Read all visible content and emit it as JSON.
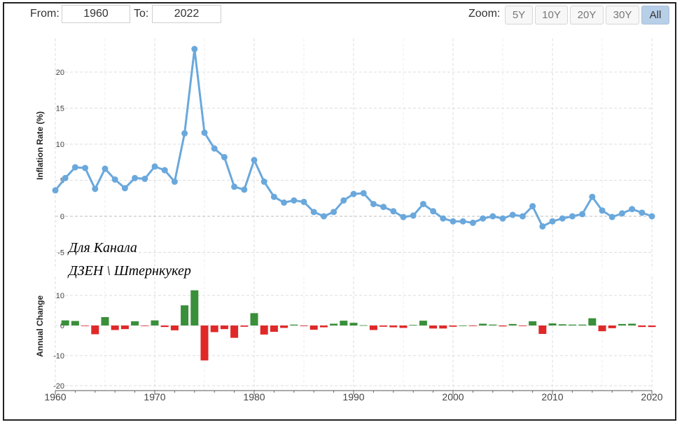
{
  "range": {
    "from_label": "From:",
    "from_value": "1960",
    "to_label": "To:",
    "to_value": "2022"
  },
  "zoom": {
    "label": "Zoom:",
    "buttons": [
      "5Y",
      "10Y",
      "20Y",
      "30Y",
      "All"
    ],
    "active": "All"
  },
  "watermark": {
    "line1": "Для Канала",
    "line2": "ДЗЕН \\ Штернкукер"
  },
  "colors": {
    "line": "#6aa8dc",
    "positive": "#3a8f3a",
    "negative": "#e02828",
    "grid": "#dddddd"
  },
  "chart_data": [
    {
      "type": "line",
      "ylabel": "Inflation Rate (%)",
      "ylim": [
        -5,
        25
      ],
      "yticks": [
        -5,
        0,
        5,
        10,
        15,
        20
      ],
      "xlim": [
        1960,
        2020
      ],
      "grid": true,
      "x": [
        1960,
        1961,
        1962,
        1963,
        1964,
        1965,
        1966,
        1967,
        1968,
        1969,
        1970,
        1971,
        1972,
        1973,
        1974,
        1975,
        1976,
        1977,
        1978,
        1979,
        1980,
        1981,
        1982,
        1983,
        1984,
        1985,
        1986,
        1987,
        1988,
        1989,
        1990,
        1991,
        1992,
        1993,
        1994,
        1995,
        1996,
        1997,
        1998,
        1999,
        2000,
        2001,
        2002,
        2003,
        2004,
        2005,
        2006,
        2007,
        2008,
        2009,
        2010,
        2011,
        2012,
        2013,
        2014,
        2015,
        2016,
        2017,
        2018,
        2019,
        2020
      ],
      "values": [
        3.6,
        5.3,
        6.8,
        6.7,
        3.8,
        6.6,
        5.1,
        3.9,
        5.3,
        5.2,
        6.9,
        6.4,
        4.8,
        11.5,
        23.2,
        11.6,
        9.4,
        8.2,
        4.1,
        3.7,
        7.8,
        4.8,
        2.7,
        1.9,
        2.2,
        2.0,
        0.6,
        0.0,
        0.6,
        2.2,
        3.1,
        3.2,
        1.7,
        1.3,
        0.7,
        -0.1,
        0.1,
        1.7,
        0.7,
        -0.3,
        -0.7,
        -0.7,
        -0.9,
        -0.3,
        0.0,
        -0.3,
        0.2,
        0.0,
        1.4,
        -1.4,
        -0.7,
        -0.3,
        0.0,
        0.3,
        2.7,
        0.8,
        -0.1,
        0.4,
        1.0,
        0.5,
        0.0
      ]
    },
    {
      "type": "bar",
      "ylabel": "Annual Change",
      "ylim": [
        -20,
        15
      ],
      "yticks": [
        -20,
        -10,
        0,
        10
      ],
      "xlim": [
        1960,
        2020
      ],
      "xticks": [
        1960,
        1970,
        1980,
        1990,
        2000,
        2010,
        2020
      ],
      "x": [
        1961,
        1962,
        1963,
        1964,
        1965,
        1966,
        1967,
        1968,
        1969,
        1970,
        1971,
        1972,
        1973,
        1974,
        1975,
        1976,
        1977,
        1978,
        1979,
        1980,
        1981,
        1982,
        1983,
        1984,
        1985,
        1986,
        1987,
        1988,
        1989,
        1990,
        1991,
        1992,
        1993,
        1994,
        1995,
        1996,
        1997,
        1998,
        1999,
        2000,
        2001,
        2002,
        2003,
        2004,
        2005,
        2006,
        2007,
        2008,
        2009,
        2010,
        2011,
        2012,
        2013,
        2014,
        2015,
        2016,
        2017,
        2018,
        2019,
        2020
      ],
      "values": [
        1.7,
        1.5,
        -0.1,
        -2.9,
        2.8,
        -1.5,
        -1.2,
        1.4,
        -0.1,
        1.7,
        -0.5,
        -1.6,
        6.7,
        11.7,
        -11.6,
        -2.2,
        -1.2,
        -4.1,
        -0.4,
        4.1,
        -3.0,
        -2.1,
        -0.8,
        0.3,
        -0.2,
        -1.4,
        -0.6,
        0.6,
        1.6,
        0.9,
        0.1,
        -1.5,
        -0.4,
        -0.6,
        -0.8,
        0.2,
        1.6,
        -1.0,
        -1.0,
        -0.4,
        0.0,
        -0.2,
        0.6,
        0.3,
        -0.3,
        0.5,
        -0.2,
        1.4,
        -2.8,
        0.7,
        0.4,
        0.3,
        0.3,
        2.4,
        -1.9,
        -0.9,
        0.5,
        0.6,
        -0.5,
        -0.5
      ]
    }
  ]
}
